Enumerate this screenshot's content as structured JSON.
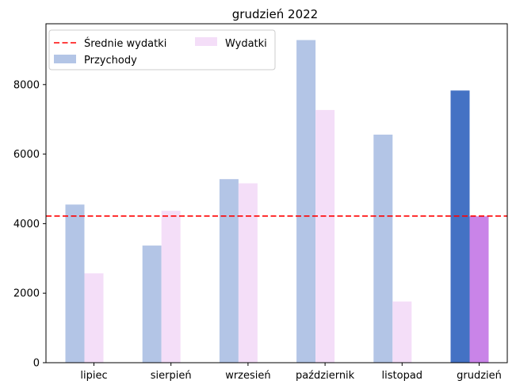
{
  "chart_data": {
    "type": "bar",
    "title": "grudzień 2022",
    "xlabel": "",
    "ylabel": "",
    "categories": [
      "lipiec",
      "sierpień",
      "wrzesień",
      "październik",
      "listopad",
      "grudzień"
    ],
    "series": [
      {
        "name": "Przychody",
        "values": [
          4550,
          3370,
          5280,
          9280,
          6560,
          7830
        ],
        "color": "#b3c5e6",
        "highlight_color": "#4472c4"
      },
      {
        "name": "Wydatki",
        "values": [
          2570,
          4370,
          5160,
          7270,
          1760,
          4210
        ],
        "color": "#f4def8",
        "highlight_color": "#c984e8"
      }
    ],
    "highlighted_category": "grudzień",
    "reference_line": {
      "name": "Średnie wydatki",
      "value": 4220,
      "color": "#ff0000",
      "style": "dashed"
    },
    "ylim": [
      0,
      9750
    ],
    "yticks": [
      0,
      2000,
      4000,
      6000,
      8000
    ],
    "grid": false,
    "legend": {
      "placement": "top-left",
      "columns": 2
    }
  }
}
